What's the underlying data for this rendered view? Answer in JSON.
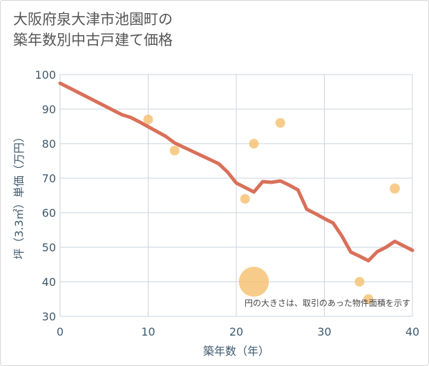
{
  "title_line1": "大阪府泉大津市池園町の",
  "title_line2": "築年数別中古戸建て価格",
  "colors": {
    "line": "#d9705a",
    "bubble": "#f5bf6e",
    "grid": "#c8d3de",
    "axis_text": "#3f5a6e"
  },
  "chart_data": {
    "type": "line+scatter",
    "title": "大阪府泉大津市池園町の築年数別中古戸建て価格",
    "xlabel": "築年数（年）",
    "ylabel": "坪（3.3㎡）単価（万円）",
    "xlim": [
      0,
      40
    ],
    "ylim": [
      30,
      100
    ],
    "x_ticks": [
      0,
      10,
      20,
      30,
      40
    ],
    "y_ticks": [
      30,
      40,
      50,
      60,
      70,
      80,
      90,
      100
    ],
    "grid": true,
    "note": "円の大きさは、取引のあった物件面積を示す",
    "series": [
      {
        "name": "trend",
        "kind": "line",
        "points": [
          [
            0,
            97.5
          ],
          [
            1,
            96.2
          ],
          [
            2,
            94.9
          ],
          [
            3,
            93.6
          ],
          [
            4,
            92.3
          ],
          [
            5,
            91.0
          ],
          [
            6,
            89.7
          ],
          [
            7,
            88.4
          ],
          [
            8,
            87.6
          ],
          [
            9,
            86.3
          ],
          [
            10,
            84.9
          ],
          [
            11,
            83.5
          ],
          [
            12,
            82.1
          ],
          [
            13,
            80.2
          ],
          [
            14,
            79.0
          ],
          [
            15,
            77.8
          ],
          [
            16,
            76.6
          ],
          [
            17,
            75.4
          ],
          [
            18,
            74.2
          ],
          [
            19,
            71.8
          ],
          [
            20,
            68.6
          ],
          [
            21,
            67.3
          ],
          [
            22,
            66.0
          ],
          [
            23,
            69.0
          ],
          [
            24,
            68.8
          ],
          [
            25,
            69.2
          ],
          [
            26,
            68.0
          ],
          [
            27,
            66.6
          ],
          [
            28,
            61.0
          ],
          [
            29,
            59.7
          ],
          [
            30,
            58.3
          ],
          [
            31,
            57.0
          ],
          [
            32,
            53.2
          ],
          [
            33,
            48.6
          ],
          [
            34,
            47.4
          ],
          [
            35,
            46.1
          ],
          [
            36,
            48.7
          ],
          [
            37,
            50.0
          ],
          [
            38,
            51.7
          ],
          [
            39,
            50.4
          ],
          [
            40,
            49.1
          ]
        ]
      },
      {
        "name": "transactions",
        "kind": "bubble",
        "points": [
          {
            "x": 10,
            "y": 87,
            "size": 1
          },
          {
            "x": 13,
            "y": 78,
            "size": 1
          },
          {
            "x": 21,
            "y": 64,
            "size": 1
          },
          {
            "x": 22,
            "y": 80,
            "size": 1
          },
          {
            "x": 22,
            "y": 40,
            "size": 3.1
          },
          {
            "x": 25,
            "y": 86,
            "size": 1
          },
          {
            "x": 34,
            "y": 40,
            "size": 1
          },
          {
            "x": 35,
            "y": 35,
            "size": 1
          },
          {
            "x": 38,
            "y": 67,
            "size": 1.05
          }
        ]
      }
    ]
  }
}
